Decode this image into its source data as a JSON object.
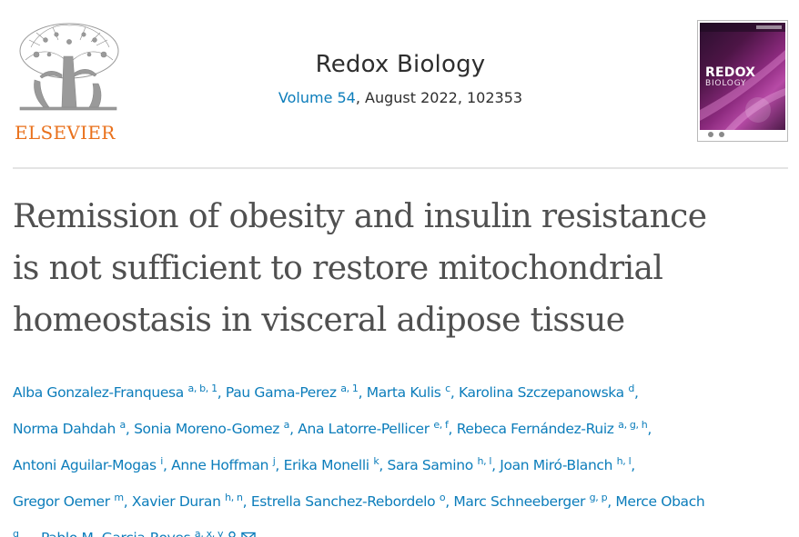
{
  "publisher": {
    "logo_name": "ELSEVIER",
    "colors": {
      "brand": "#e9711c",
      "tree": "#9a9a9a"
    }
  },
  "journal": {
    "title": "Redox Biology",
    "volume_label": "Volume 54",
    "issue_info": ", August 2022, 102353",
    "link_color": "#0c7dbb"
  },
  "cover": {
    "title": "REDOX",
    "subtitle": "BIOLOGY"
  },
  "article": {
    "title_lines": [
      "Remission of obesity and insulin resistance",
      "is not sufficient to restore mitochondrial",
      "homeostasis in visceral adipose tissue"
    ]
  },
  "authors": [
    {
      "name": "Alba Gonzalez-Franquesa",
      "affil": "a, b, 1"
    },
    {
      "name": "Pau Gama-Perez",
      "affil": "a, 1"
    },
    {
      "name": "Marta Kulis",
      "affil": "c"
    },
    {
      "name": "Karolina Szczepanowska",
      "affil": "d"
    },
    {
      "name": "Norma Dahdah",
      "affil": "a"
    },
    {
      "name": "Sonia Moreno-Gomez",
      "affil": "a"
    },
    {
      "name": "Ana Latorre-Pellicer",
      "affil": "e, f"
    },
    {
      "name": "Rebeca Fernández-Ruiz",
      "affil": "a, g, h"
    },
    {
      "name": "Antoni Aguilar-Mogas",
      "affil": "i"
    },
    {
      "name": "Anne Hoffman",
      "affil": "j"
    },
    {
      "name": "Erika Monelli",
      "affil": "k"
    },
    {
      "name": "Sara Samino",
      "affil": "h, l"
    },
    {
      "name": "Joan Miró-Blanch",
      "affil": "h, l"
    },
    {
      "name": "Gregor Oemer",
      "affil": "m"
    },
    {
      "name": "Xavier Duran",
      "affil": "h, n"
    },
    {
      "name": "Estrella Sanchez-Rebordelo",
      "affil": "o"
    },
    {
      "name": "Marc Schneeberger",
      "affil": "g, p"
    },
    {
      "name": "Merce Obach",
      "affil": "g"
    },
    {
      "name": "Pablo M. Garcia-Roves",
      "affil": "a, x, y"
    }
  ],
  "author_separator": ", ",
  "ellipsis": "…",
  "icons": {
    "author_icon": "person-icon",
    "email_icon": "envelope-icon"
  }
}
